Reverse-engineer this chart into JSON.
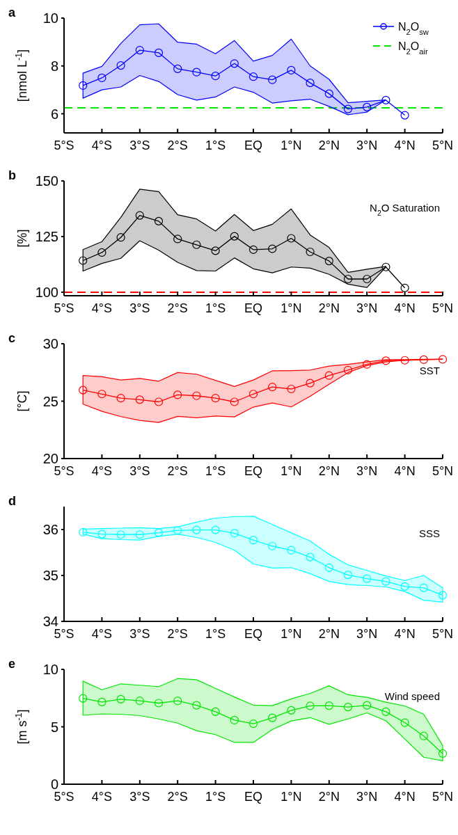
{
  "chart_data": [
    {
      "type": "line",
      "title": "a",
      "ylabel": "[nmol L$^{-1}$]",
      "x": [
        -4.5,
        -4,
        -3.5,
        -3,
        -2.5,
        -2,
        -1.5,
        -1,
        -0.5,
        0,
        0.5,
        1,
        1.5,
        2,
        2.5,
        3,
        3.5,
        4
      ],
      "series": [
        {
          "name": "N$_{2}$O$_{sw}$",
          "color": "#0000ff",
          "values": [
            7.18,
            7.5,
            8.02,
            8.66,
            8.55,
            7.88,
            7.74,
            7.58,
            8.1,
            7.55,
            7.42,
            7.82,
            7.29,
            6.84,
            6.2,
            6.28,
            6.57,
            5.94
          ],
          "upper": [
            7.7,
            7.98,
            8.94,
            9.72,
            9.76,
            8.99,
            8.91,
            8.51,
            9.06,
            8.2,
            8.44,
            9.12,
            8.0,
            7.44,
            6.46,
            6.52,
            6.58,
            null
          ],
          "lower": [
            6.65,
            7.0,
            7.12,
            7.6,
            7.35,
            6.8,
            6.57,
            6.7,
            7.12,
            6.9,
            6.45,
            6.54,
            6.61,
            6.31,
            5.96,
            6.07,
            6.58,
            null
          ]
        }
      ],
      "ref_lines": [
        {
          "axis": "y",
          "value": 6.25,
          "label": "N$_{2}$O$_{air}$",
          "color": "#00e600",
          "line_style": "dashed"
        }
      ],
      "xlim": [
        -5,
        5
      ],
      "xticks": [
        {
          "value": -5,
          "label": "5°S"
        },
        {
          "value": -4,
          "label": "4°S"
        },
        {
          "value": -3,
          "label": "3°S"
        },
        {
          "value": -2,
          "label": "2°S"
        },
        {
          "value": -1,
          "label": "1°S"
        },
        {
          "value": 0,
          "label": "EQ"
        },
        {
          "value": 1,
          "label": "1°N"
        },
        {
          "value": 2,
          "label": "2°N"
        },
        {
          "value": 3,
          "label": "3°N"
        },
        {
          "value": 4,
          "label": "4°N"
        },
        {
          "value": 5,
          "label": "5°N"
        }
      ],
      "ylim": [
        5.2,
        10
      ],
      "yticks": [
        6,
        8,
        10
      ],
      "marker": "circle",
      "line_style": "solid",
      "legend": "top right"
    },
    {
      "type": "line",
      "title": "b",
      "ylabel": "[%]",
      "annotations": [
        "N$_{2}$O Saturation"
      ],
      "x": [
        -4.5,
        -4,
        -3.5,
        -3,
        -2.5,
        -2,
        -1.5,
        -1,
        -0.5,
        0,
        0.5,
        1,
        1.5,
        2,
        2.5,
        3,
        3.5,
        4
      ],
      "series": [
        {
          "color": "#000000",
          "values": [
            114.2,
            117.8,
            124.6,
            134.5,
            131.9,
            123.9,
            121.3,
            118.6,
            125.1,
            119.1,
            119.5,
            124.2,
            118.1,
            114.0,
            105.9,
            105.9,
            111.3,
            101.9
          ],
          "upper": [
            119.1,
            122.7,
            133.6,
            146.3,
            145.2,
            134.8,
            132.9,
            127.5,
            134.9,
            127.7,
            130.5,
            137.4,
            125.7,
            120.1,
            108.9,
            110.3,
            111.6,
            null
          ],
          "lower": [
            109.5,
            112.9,
            115.2,
            123.1,
            118.9,
            113.4,
            109.7,
            109.5,
            115.4,
            110.5,
            108.7,
            111.3,
            110.8,
            108.0,
            103.6,
            102.1,
            111.3,
            null
          ]
        }
      ],
      "ref_lines": [
        {
          "axis": "y",
          "value": 100,
          "color": "#ff0000",
          "line_style": "dashed"
        }
      ],
      "xlim": [
        -5,
        5
      ],
      "xticks": [
        {
          "value": -5,
          "label": "5°S"
        },
        {
          "value": -4,
          "label": "4°S"
        },
        {
          "value": -3,
          "label": "3°S"
        },
        {
          "value": -2,
          "label": "2°S"
        },
        {
          "value": -1,
          "label": "1°S"
        },
        {
          "value": 0,
          "label": "EQ"
        },
        {
          "value": 1,
          "label": "1°N"
        },
        {
          "value": 2,
          "label": "2°N"
        },
        {
          "value": 3,
          "label": "3°N"
        },
        {
          "value": 4,
          "label": "4°N"
        },
        {
          "value": 5,
          "label": "5°N"
        }
      ],
      "ylim": [
        98.4,
        150
      ],
      "yticks": [
        100,
        125,
        150
      ],
      "marker": "circle",
      "line_style": "solid"
    },
    {
      "type": "line",
      "title": "c",
      "ylabel": "[°C]",
      "annotations": [
        "SST"
      ],
      "x": [
        -4.5,
        -4,
        -3.5,
        -3,
        -2.5,
        -2,
        -1.5,
        -1,
        -0.5,
        0,
        0.5,
        1,
        1.5,
        2,
        2.5,
        3,
        3.5,
        4,
        4.5,
        5
      ],
      "series": [
        {
          "color": "#ff0000",
          "values": [
            25.96,
            25.62,
            25.26,
            25.13,
            24.94,
            25.55,
            25.47,
            25.26,
            24.94,
            25.62,
            26.23,
            26.06,
            26.57,
            27.23,
            27.71,
            28.2,
            28.52,
            28.56,
            28.61,
            28.64
          ],
          "upper": [
            27.23,
            27.13,
            26.84,
            26.98,
            26.74,
            27.49,
            27.35,
            26.81,
            26.28,
            26.84,
            27.64,
            27.66,
            27.71,
            28.05,
            28.2,
            28.42,
            28.61,
            28.61,
            28.64,
            28.66
          ],
          "lower": [
            24.74,
            24.11,
            23.65,
            23.33,
            23.14,
            23.67,
            23.55,
            23.7,
            23.63,
            24.48,
            24.84,
            24.5,
            25.43,
            26.47,
            27.49,
            28.1,
            28.42,
            28.56,
            28.61,
            28.66
          ]
        }
      ],
      "xlim": [
        -5,
        5
      ],
      "xticks": [
        {
          "value": -5,
          "label": "5°S"
        },
        {
          "value": -4,
          "label": "4°S"
        },
        {
          "value": -3,
          "label": "3°S"
        },
        {
          "value": -2,
          "label": "2°S"
        },
        {
          "value": -1,
          "label": "1°S"
        },
        {
          "value": 0,
          "label": "EQ"
        },
        {
          "value": 1,
          "label": "1°N"
        },
        {
          "value": 2,
          "label": "2°N"
        },
        {
          "value": 3,
          "label": "3°N"
        },
        {
          "value": 4,
          "label": "4°N"
        },
        {
          "value": 5,
          "label": "5°N"
        }
      ],
      "ylim": [
        20,
        30
      ],
      "yticks": [
        20,
        25,
        30
      ],
      "marker": "circle",
      "line_style": "solid"
    },
    {
      "type": "line",
      "title": "d",
      "annotations": [
        "SSS"
      ],
      "x": [
        -4.5,
        -4,
        -3.5,
        -3,
        -2.5,
        -2,
        -1.5,
        -1,
        -0.5,
        0,
        0.5,
        1,
        1.5,
        2,
        2.5,
        3,
        3.5,
        4,
        4.5,
        5
      ],
      "series": [
        {
          "color": "#00ffff",
          "values": [
            35.94,
            35.9,
            35.89,
            35.89,
            35.93,
            35.98,
            35.99,
            35.99,
            35.92,
            35.77,
            35.64,
            35.55,
            35.4,
            35.17,
            35.01,
            34.93,
            34.87,
            34.76,
            34.73,
            34.57
          ],
          "upper": [
            36.01,
            36.02,
            36.03,
            36.04,
            36.02,
            36.06,
            36.16,
            36.25,
            36.28,
            36.29,
            36.11,
            35.93,
            35.75,
            35.46,
            35.23,
            35.11,
            34.99,
            34.89,
            35.0,
            34.73
          ],
          "lower": [
            35.9,
            35.8,
            35.78,
            35.77,
            35.85,
            35.9,
            35.83,
            35.72,
            35.55,
            35.25,
            35.16,
            35.17,
            35.04,
            34.87,
            34.8,
            34.78,
            34.75,
            34.65,
            34.46,
            34.42
          ]
        }
      ],
      "xlim": [
        -5,
        5
      ],
      "xticks": [
        {
          "value": -5,
          "label": "5°S"
        },
        {
          "value": -4,
          "label": "4°S"
        },
        {
          "value": -3,
          "label": "3°S"
        },
        {
          "value": -2,
          "label": "2°S"
        },
        {
          "value": -1,
          "label": "1°S"
        },
        {
          "value": 0,
          "label": "EQ"
        },
        {
          "value": 1,
          "label": "1°N"
        },
        {
          "value": 2,
          "label": "2°N"
        },
        {
          "value": 3,
          "label": "3°N"
        },
        {
          "value": 4,
          "label": "4°N"
        },
        {
          "value": 5,
          "label": "5°N"
        }
      ],
      "ylim": [
        34,
        36.5
      ],
      "yticks": [
        34,
        35,
        36
      ],
      "marker": "circle",
      "line_style": "solid"
    },
    {
      "type": "line",
      "title": "e",
      "ylabel": "[m s$^{-1}$]",
      "annotations": [
        "Wind speed"
      ],
      "x": [
        -4.5,
        -4,
        -3.5,
        -3,
        -2.5,
        -2,
        -1.5,
        -1,
        -0.5,
        0,
        0.5,
        1,
        1.5,
        2,
        2.5,
        3,
        3.5,
        4,
        4.5,
        5
      ],
      "series": [
        {
          "color": "#00e600",
          "values": [
            7.48,
            7.16,
            7.4,
            7.26,
            7.06,
            7.26,
            6.87,
            6.31,
            5.58,
            5.27,
            5.78,
            6.43,
            6.82,
            6.84,
            6.72,
            6.87,
            6.31,
            5.36,
            4.2,
            2.67
          ],
          "upper": [
            8.98,
            8.23,
            8.74,
            8.62,
            8.5,
            9.2,
            9.1,
            8.35,
            7.6,
            6.89,
            6.84,
            7.43,
            7.91,
            8.57,
            7.79,
            7.57,
            7.14,
            6.82,
            6.09,
            3.37
          ],
          "lower": [
            6.0,
            6.12,
            6.09,
            5.97,
            5.68,
            5.32,
            4.66,
            4.32,
            3.64,
            3.64,
            4.76,
            5.51,
            5.8,
            5.22,
            5.68,
            6.21,
            5.53,
            3.93,
            2.35,
            2.04
          ]
        }
      ],
      "xlim": [
        -5,
        5
      ],
      "xticks": [
        {
          "value": -5,
          "label": "5°S"
        },
        {
          "value": -4,
          "label": "4°S"
        },
        {
          "value": -3,
          "label": "3°S"
        },
        {
          "value": -2,
          "label": "2°S"
        },
        {
          "value": -1,
          "label": "1°S"
        },
        {
          "value": 0,
          "label": "EQ"
        },
        {
          "value": 1,
          "label": "1°N"
        },
        {
          "value": 2,
          "label": "2°N"
        },
        {
          "value": 3,
          "label": "3°N"
        },
        {
          "value": 4,
          "label": "4°N"
        },
        {
          "value": 5,
          "label": "5°N"
        }
      ],
      "ylim": [
        0,
        10
      ],
      "yticks": [
        0,
        5,
        10
      ],
      "marker": "circle",
      "line_style": "solid"
    }
  ]
}
